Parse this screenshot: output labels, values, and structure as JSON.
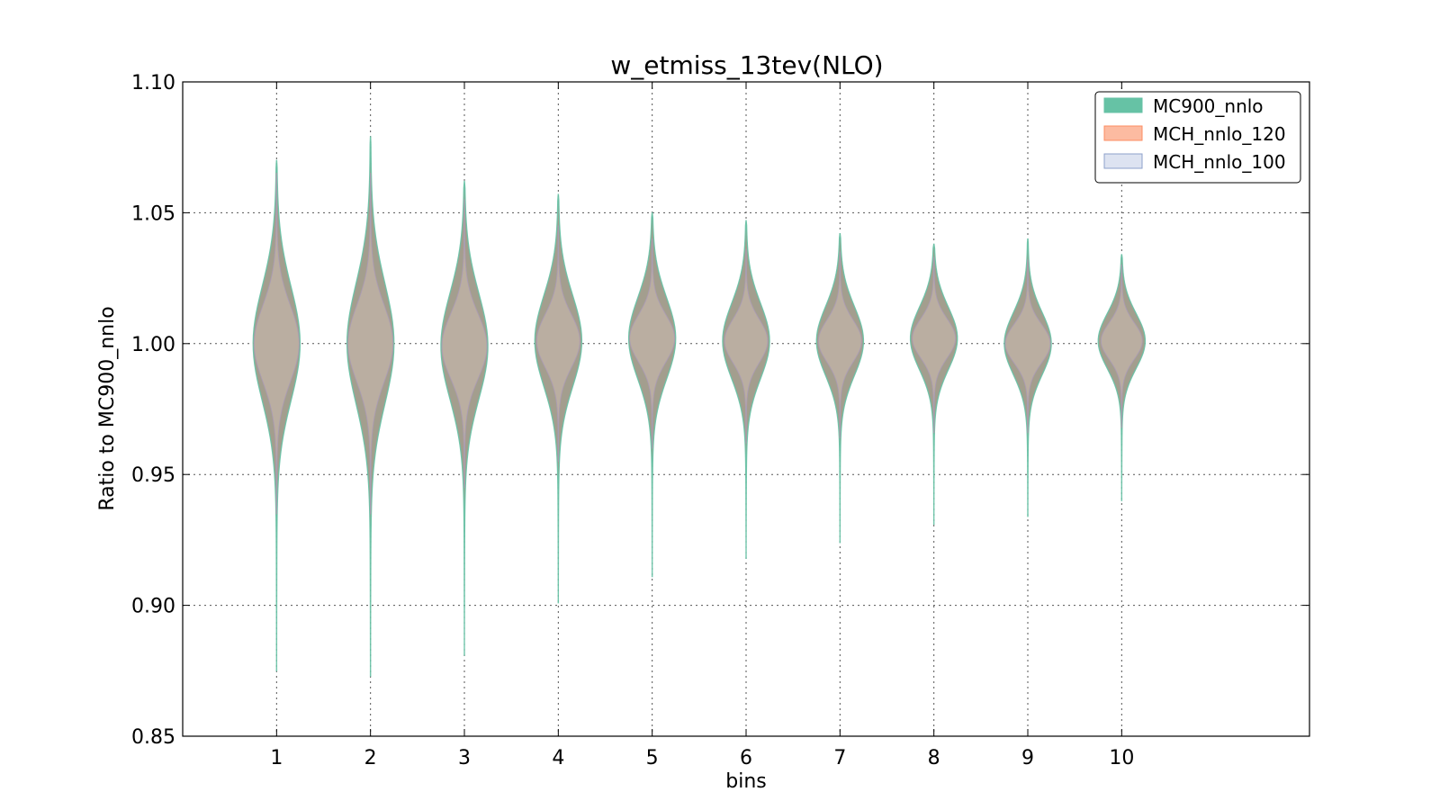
{
  "chart_data": {
    "type": "violin",
    "title": "w_etmiss_13tev(NLO)",
    "xlabel": "bins",
    "ylabel": "Ratio to MC900_nnlo",
    "categories": [
      "1",
      "2",
      "3",
      "4",
      "5",
      "6",
      "7",
      "8",
      "9",
      "10"
    ],
    "xlim": [
      0,
      12
    ],
    "ylim": [
      0.85,
      1.1
    ],
    "yticks": [
      "0.85",
      "0.90",
      "0.95",
      "1.00",
      "1.05",
      "1.10"
    ],
    "grid": true,
    "legend_position": "top-right",
    "legend": [
      "MC900_nnlo",
      "MCH_nnlo_120",
      "MCH_nnlo_100"
    ],
    "series": [
      {
        "name": "MC900_nnlo",
        "color": "#66c2a5",
        "violins": [
          {
            "bin": 1,
            "min": 0.875,
            "max": 1.07,
            "center": 1.0,
            "half_width": 0.25
          },
          {
            "bin": 2,
            "min": 0.873,
            "max": 1.079,
            "center": 1.0,
            "half_width": 0.25
          },
          {
            "bin": 3,
            "min": 0.881,
            "max": 1.062,
            "center": 0.999,
            "half_width": 0.25
          },
          {
            "bin": 4,
            "min": 0.901,
            "max": 1.057,
            "center": 1.001,
            "half_width": 0.25
          },
          {
            "bin": 5,
            "min": 0.911,
            "max": 1.05,
            "center": 1.002,
            "half_width": 0.25
          },
          {
            "bin": 6,
            "min": 0.918,
            "max": 1.047,
            "center": 1.001,
            "half_width": 0.25
          },
          {
            "bin": 7,
            "min": 0.924,
            "max": 1.042,
            "center": 1.001,
            "half_width": 0.25
          },
          {
            "bin": 8,
            "min": 0.931,
            "max": 1.038,
            "center": 1.002,
            "half_width": 0.25
          },
          {
            "bin": 9,
            "min": 0.934,
            "max": 1.04,
            "center": 1.0,
            "half_width": 0.25
          },
          {
            "bin": 10,
            "min": 0.94,
            "max": 1.034,
            "center": 1.001,
            "half_width": 0.25
          }
        ]
      },
      {
        "name": "MCH_nnlo_120",
        "color": "#fc8d62",
        "violins": [
          {
            "bin": 1,
            "min": 0.935,
            "max": 1.065,
            "center": 1.0,
            "half_width": 0.24
          },
          {
            "bin": 2,
            "min": 0.935,
            "max": 1.065,
            "center": 1.0,
            "half_width": 0.24
          },
          {
            "bin": 3,
            "min": 0.945,
            "max": 1.055,
            "center": 0.999,
            "half_width": 0.24
          },
          {
            "bin": 4,
            "min": 0.955,
            "max": 1.045,
            "center": 1.001,
            "half_width": 0.23
          },
          {
            "bin": 5,
            "min": 0.96,
            "max": 1.04,
            "center": 1.002,
            "half_width": 0.24
          },
          {
            "bin": 6,
            "min": 0.962,
            "max": 1.036,
            "center": 1.001,
            "half_width": 0.23
          },
          {
            "bin": 7,
            "min": 0.964,
            "max": 1.035,
            "center": 1.001,
            "half_width": 0.23
          },
          {
            "bin": 8,
            "min": 0.966,
            "max": 1.033,
            "center": 1.002,
            "half_width": 0.23
          },
          {
            "bin": 9,
            "min": 0.966,
            "max": 1.032,
            "center": 1.0,
            "half_width": 0.24
          },
          {
            "bin": 10,
            "min": 0.968,
            "max": 1.03,
            "center": 1.001,
            "half_width": 0.22
          }
        ]
      },
      {
        "name": "MCH_nnlo_100",
        "color": "#8da0cb",
        "violins": [
          {
            "bin": 1,
            "min": 0.935,
            "max": 1.065,
            "center": 1.0,
            "half_width": 0.24
          },
          {
            "bin": 2,
            "min": 0.935,
            "max": 1.065,
            "center": 1.0,
            "half_width": 0.24
          },
          {
            "bin": 3,
            "min": 0.945,
            "max": 1.055,
            "center": 0.999,
            "half_width": 0.24
          },
          {
            "bin": 4,
            "min": 0.955,
            "max": 1.045,
            "center": 1.001,
            "half_width": 0.23
          },
          {
            "bin": 5,
            "min": 0.96,
            "max": 1.04,
            "center": 1.002,
            "half_width": 0.24
          },
          {
            "bin": 6,
            "min": 0.962,
            "max": 1.036,
            "center": 1.001,
            "half_width": 0.23
          },
          {
            "bin": 7,
            "min": 0.964,
            "max": 1.035,
            "center": 1.001,
            "half_width": 0.23
          },
          {
            "bin": 8,
            "min": 0.966,
            "max": 1.033,
            "center": 1.002,
            "half_width": 0.23
          },
          {
            "bin": 9,
            "min": 0.966,
            "max": 1.032,
            "center": 1.0,
            "half_width": 0.24
          },
          {
            "bin": 10,
            "min": 0.968,
            "max": 1.03,
            "center": 1.001,
            "half_width": 0.22
          }
        ]
      }
    ]
  },
  "legend_fills": {
    "MC900_nnlo": "#66c2a5",
    "MCH_nnlo_120": "#fcbba1",
    "MCH_nnlo_100": "#dde3f1"
  },
  "overlap_fill": "#a39e8e"
}
